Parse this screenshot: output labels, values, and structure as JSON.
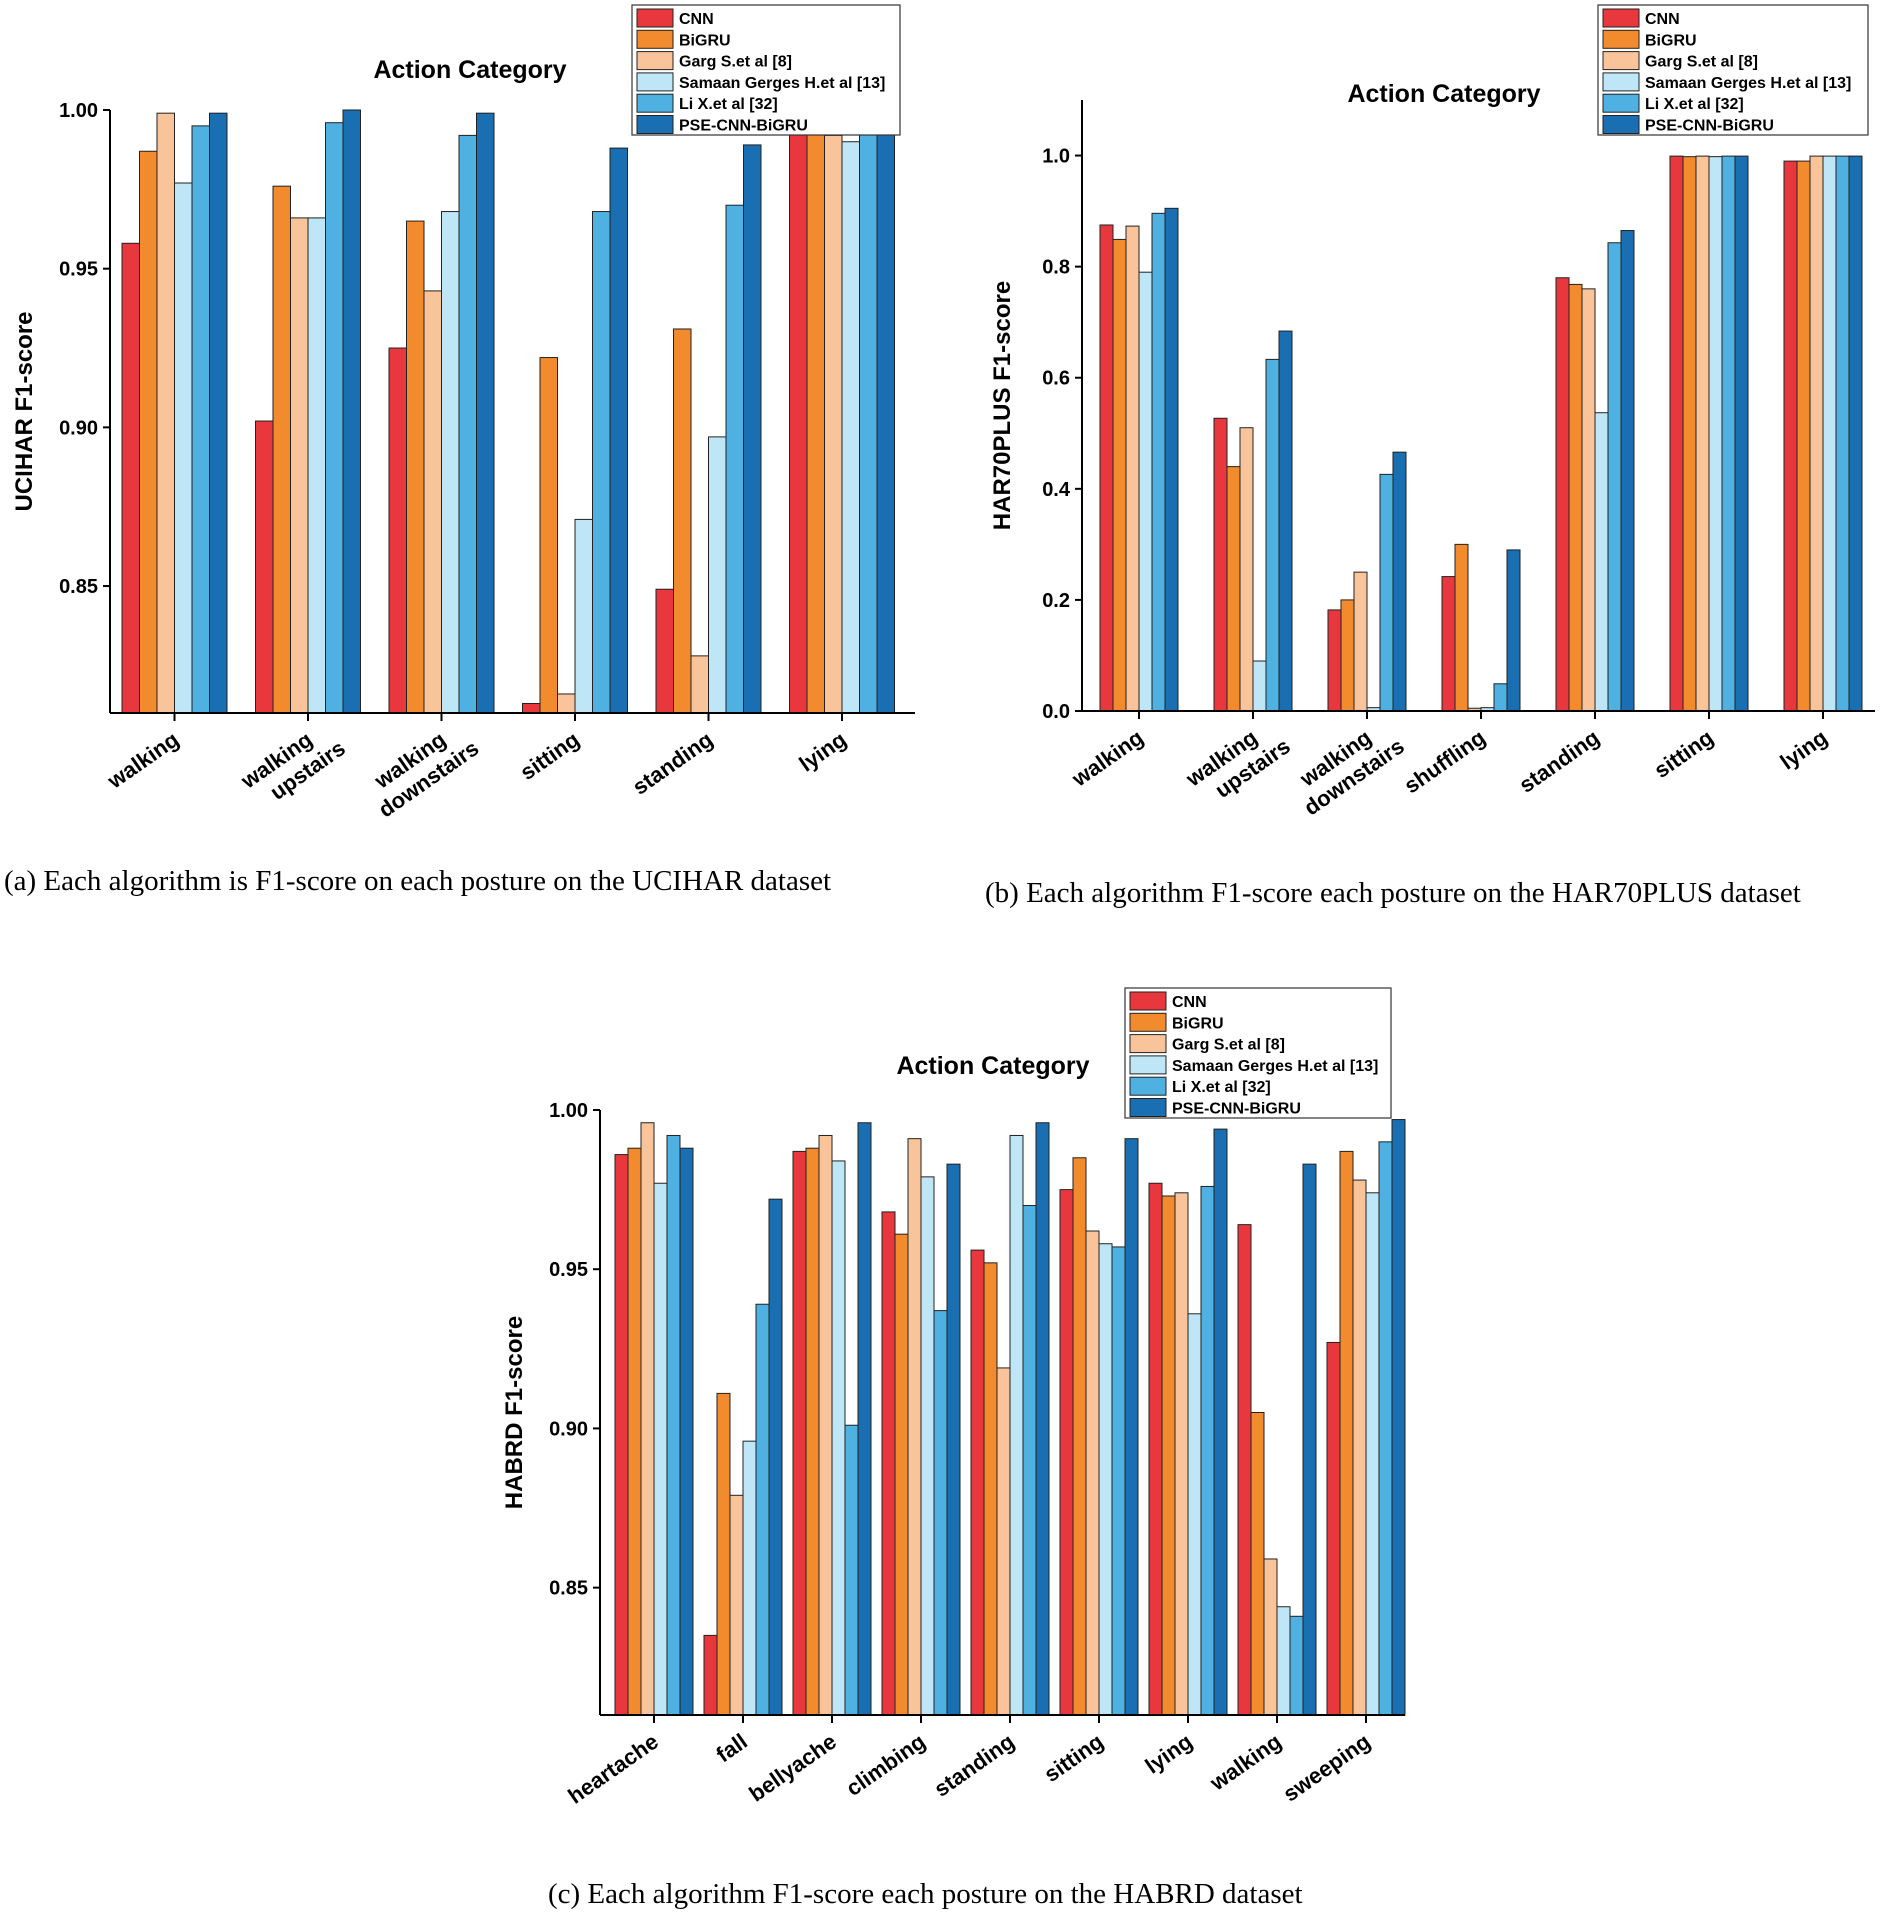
{
  "legend": [
    "CNN",
    "BiGRU",
    "Garg S.et al [8]",
    "Samaan Gerges H.et al [13]",
    "Li X.et al [32]",
    "PSE-CNN-BiGRU"
  ],
  "colors": [
    "#e8383d",
    "#f28a2e",
    "#f9c49a",
    "#bfe6f7",
    "#4fb0e2",
    "#1a6fb3"
  ],
  "chart_data": [
    {
      "type": "bar",
      "id": "a",
      "title": "Action Category",
      "ylabel": "UCIHAR F1-score",
      "caption": "(a)  Each algorithm is F1-score on each posture on the UCIHAR dataset",
      "ylim": [
        0.81,
        1.0
      ],
      "yticks": [
        0.85,
        0.9,
        0.95,
        1.0
      ],
      "ytick_labels": [
        "0.85",
        "0.90",
        "0.95",
        "1.00"
      ],
      "categories": [
        [
          "walking"
        ],
        [
          "walking",
          "upstairs"
        ],
        [
          "walking",
          "downstairs"
        ],
        [
          "sitting"
        ],
        [
          "standing"
        ],
        [
          "lying"
        ]
      ],
      "series": [
        {
          "name": "CNN",
          "values": [
            0.958,
            0.902,
            0.925,
            0.813,
            0.849,
            0.998
          ]
        },
        {
          "name": "BiGRU",
          "values": [
            0.987,
            0.976,
            0.965,
            0.922,
            0.931,
            0.993
          ]
        },
        {
          "name": "Garg S.et al [8]",
          "values": [
            0.999,
            0.966,
            0.943,
            0.816,
            0.828,
            0.992
          ]
        },
        {
          "name": "Samaan Gerges H.et al [13]",
          "values": [
            0.977,
            0.966,
            0.968,
            0.871,
            0.897,
            0.99
          ]
        },
        {
          "name": "Li X.et al [32]",
          "values": [
            0.995,
            0.996,
            0.992,
            0.968,
            0.97,
            0.999
          ]
        },
        {
          "name": "PSE-CNN-BiGRU",
          "values": [
            0.999,
            1.0,
            0.999,
            0.988,
            0.989,
            0.999
          ]
        }
      ]
    },
    {
      "type": "bar",
      "id": "b",
      "title": "Action Category",
      "ylabel": "HAR70PLUS F1-score",
      "caption": "(b)  Each algorithm F1-score each posture on the HAR70PLUS dataset",
      "ylim": [
        0.0,
        1.1
      ],
      "yticks": [
        0.0,
        0.2,
        0.4,
        0.6,
        0.8,
        1.0
      ],
      "ytick_labels": [
        "0.0",
        "0.2",
        "0.4",
        "0.6",
        "0.8",
        "1.0"
      ],
      "categories": [
        [
          "walking"
        ],
        [
          "walking",
          "upstairs"
        ],
        [
          "walking",
          "downstairs"
        ],
        [
          "shuffling"
        ],
        [
          "standing"
        ],
        [
          "sitting"
        ],
        [
          "lying"
        ]
      ],
      "series": [
        {
          "name": "CNN",
          "values": [
            0.875,
            0.527,
            0.182,
            0.242,
            0.78,
            0.999,
            0.99
          ]
        },
        {
          "name": "BiGRU",
          "values": [
            0.849,
            0.44,
            0.2,
            0.3,
            0.768,
            0.998,
            0.99
          ]
        },
        {
          "name": "Garg S.et al [8]",
          "values": [
            0.873,
            0.51,
            0.25,
            0.005,
            0.76,
            0.999,
            0.999
          ]
        },
        {
          "name": "Samaan Gerges H.et al [13]",
          "values": [
            0.79,
            0.09,
            0.006,
            0.006,
            0.537,
            0.998,
            0.999
          ]
        },
        {
          "name": "Li X.et al [32]",
          "values": [
            0.896,
            0.633,
            0.426,
            0.049,
            0.843,
            0.999,
            0.999
          ]
        },
        {
          "name": "PSE-CNN-BiGRU",
          "values": [
            0.905,
            0.684,
            0.466,
            0.29,
            0.865,
            0.999,
            0.999
          ]
        }
      ]
    },
    {
      "type": "bar",
      "id": "c",
      "title": "Action Category",
      "ylabel": "HABRD F1-score",
      "caption": "(c)  Each algorithm F1-score each posture on the HABRD dataset",
      "ylim": [
        0.81,
        1.0
      ],
      "yticks": [
        0.85,
        0.9,
        0.95,
        1.0
      ],
      "ytick_labels": [
        "0.85",
        "0.90",
        "0.95",
        "1.00"
      ],
      "categories": [
        [
          "heartache"
        ],
        [
          "fall"
        ],
        [
          "bellyache"
        ],
        [
          "climbing"
        ],
        [
          "standing"
        ],
        [
          "sitting"
        ],
        [
          "lying"
        ],
        [
          "walking"
        ],
        [
          "sweeping"
        ]
      ],
      "series": [
        {
          "name": "CNN",
          "values": [
            0.986,
            0.835,
            0.987,
            0.968,
            0.956,
            0.975,
            0.977,
            0.964,
            0.927
          ]
        },
        {
          "name": "BiGRU",
          "values": [
            0.988,
            0.911,
            0.988,
            0.961,
            0.952,
            0.985,
            0.973,
            0.905,
            0.987
          ]
        },
        {
          "name": "Garg S.et al [8]",
          "values": [
            0.996,
            0.879,
            0.992,
            0.991,
            0.919,
            0.962,
            0.974,
            0.859,
            0.978
          ]
        },
        {
          "name": "Samaan Gerges H.et al [13]",
          "values": [
            0.977,
            0.896,
            0.984,
            0.979,
            0.992,
            0.958,
            0.936,
            0.844,
            0.974
          ]
        },
        {
          "name": "Li X.et al [32]",
          "values": [
            0.992,
            0.939,
            0.901,
            0.937,
            0.97,
            0.957,
            0.976,
            0.841,
            0.99
          ]
        },
        {
          "name": "PSE-CNN-BiGRU",
          "values": [
            0.988,
            0.972,
            0.996,
            0.983,
            0.996,
            0.991,
            0.994,
            0.983,
            0.997
          ]
        }
      ]
    }
  ]
}
